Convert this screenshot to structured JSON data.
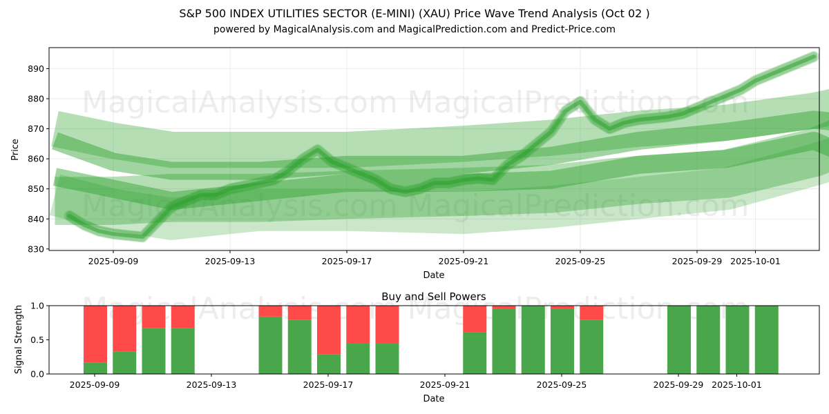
{
  "chart_data": [
    {
      "type": "area",
      "title": "S&P 500 INDEX UTILITIES SECTOR (E-MINI) (XAU) Price Wave Trend Analysis (Oct 02 )",
      "subtitle": "powered by MagicalAnalysis.com and MagicalPrediction.com and Predict-Price.com",
      "xlabel": "Date",
      "ylabel": "Price",
      "ylim": [
        829.5,
        897
      ],
      "xlim": [
        "2025-09-06.8",
        "2025-10-04.1"
      ],
      "grid": true,
      "y_ticks": [
        830,
        840,
        850,
        860,
        870,
        880,
        890
      ],
      "x_ticks": [
        "2025-09-09",
        "2025-09-13",
        "2025-09-17",
        "2025-09-21",
        "2025-09-25",
        "2025-09-29",
        "2025-10-01"
      ],
      "watermarks": [
        "MagicalAnalysis.com",
        "MagicalPrediction.com"
      ],
      "colors": {
        "wave": "#2ca02c"
      },
      "price_path": {
        "x": [
          7.5,
          8,
          8.5,
          9,
          9.5,
          10,
          10.5,
          11,
          11.5,
          12,
          12.5,
          13,
          13.5,
          14,
          14.5,
          15,
          15.5,
          16,
          16.5,
          17,
          17.5,
          18,
          18.5,
          19,
          19.5,
          20,
          20.5,
          21,
          21.5,
          22,
          22.5,
          23,
          23.5,
          24,
          24.5,
          25,
          25.5,
          26,
          26.5,
          27,
          27.5,
          28,
          28.5,
          29,
          29.5,
          30,
          30.5,
          31,
          31.5,
          32,
          32.5,
          33
        ],
        "values": [
          841,
          838,
          836,
          835,
          834.5,
          834,
          839,
          844,
          846,
          848,
          848,
          850,
          851,
          852,
          853,
          856,
          860,
          863,
          859,
          857,
          855,
          853,
          850,
          849,
          850,
          852,
          852,
          853,
          853.5,
          853,
          858,
          861,
          865,
          869,
          876,
          879,
          873,
          870,
          872,
          873,
          873.5,
          874,
          875,
          877,
          879,
          881,
          883,
          886,
          888,
          890,
          892,
          894
        ]
      },
      "bands": [
        {
          "name": "upper-long",
          "x": [
            7,
            9,
            11,
            14,
            17,
            21,
            24,
            27,
            30,
            33,
            34
          ],
          "center": [
            870,
            866,
            863,
            863,
            863,
            865,
            867,
            870,
            872,
            876,
            878
          ],
          "width": 12
        },
        {
          "name": "upper-mid",
          "x": [
            7,
            9,
            11,
            14,
            17,
            21,
            24,
            27,
            30,
            33,
            34
          ],
          "center": [
            866,
            859,
            856,
            856,
            858,
            858,
            861,
            866,
            869,
            873,
            872
          ],
          "width": 6
        },
        {
          "name": "lower-long",
          "x": [
            7,
            9,
            11,
            14,
            17,
            21,
            24,
            27,
            30,
            33,
            34
          ],
          "center": [
            846,
            846,
            847,
            847,
            848,
            849,
            850,
            853,
            855,
            862,
            866
          ],
          "width": 16
        },
        {
          "name": "lower-mid",
          "x": [
            7,
            9,
            11,
            14,
            17,
            21,
            24,
            27,
            30,
            33,
            34
          ],
          "center": [
            854,
            850,
            846,
            849,
            852,
            852,
            853,
            858,
            860,
            866,
            862
          ],
          "width": 6
        },
        {
          "name": "base",
          "x": [
            7,
            9,
            11,
            14,
            17,
            21,
            24,
            27,
            30,
            33,
            34
          ],
          "center": [
            848,
            843,
            840,
            843,
            843,
            842,
            844,
            847,
            850,
            858,
            861
          ],
          "width": 14
        }
      ]
    },
    {
      "type": "bar",
      "title": "Buy and Sell Powers",
      "xlabel": "Date",
      "ylabel": "Signal Strength",
      "ylim": [
        0,
        1
      ],
      "y_ticks": [
        "0.0",
        "0.5",
        "1.0"
      ],
      "x_ticks": [
        "2025-09-09",
        "2025-09-13",
        "2025-09-17",
        "2025-09-21",
        "2025-09-25",
        "2025-09-29",
        "2025-10-01"
      ],
      "colors": {
        "buy": "#4aa64a",
        "sell": "#ff4a4a"
      },
      "days": [
        9,
        10,
        11,
        12,
        15,
        16,
        17,
        18,
        19,
        22,
        23,
        24,
        25,
        26,
        29,
        30,
        31,
        32
      ],
      "series": [
        {
          "name": "Buy",
          "values": [
            0.17,
            0.33,
            0.67,
            0.67,
            0.84,
            0.79,
            0.29,
            0.45,
            0.45,
            0.61,
            0.95,
            1.0,
            0.95,
            0.79,
            1.0,
            1.0,
            1.0,
            1.0
          ]
        },
        {
          "name": "Sell",
          "values": [
            0.83,
            0.67,
            0.33,
            0.33,
            0.16,
            0.21,
            0.71,
            0.55,
            0.55,
            0.39,
            0.05,
            0.0,
            0.05,
            0.21,
            0.0,
            0.0,
            0.0,
            0.0
          ]
        }
      ]
    }
  ]
}
